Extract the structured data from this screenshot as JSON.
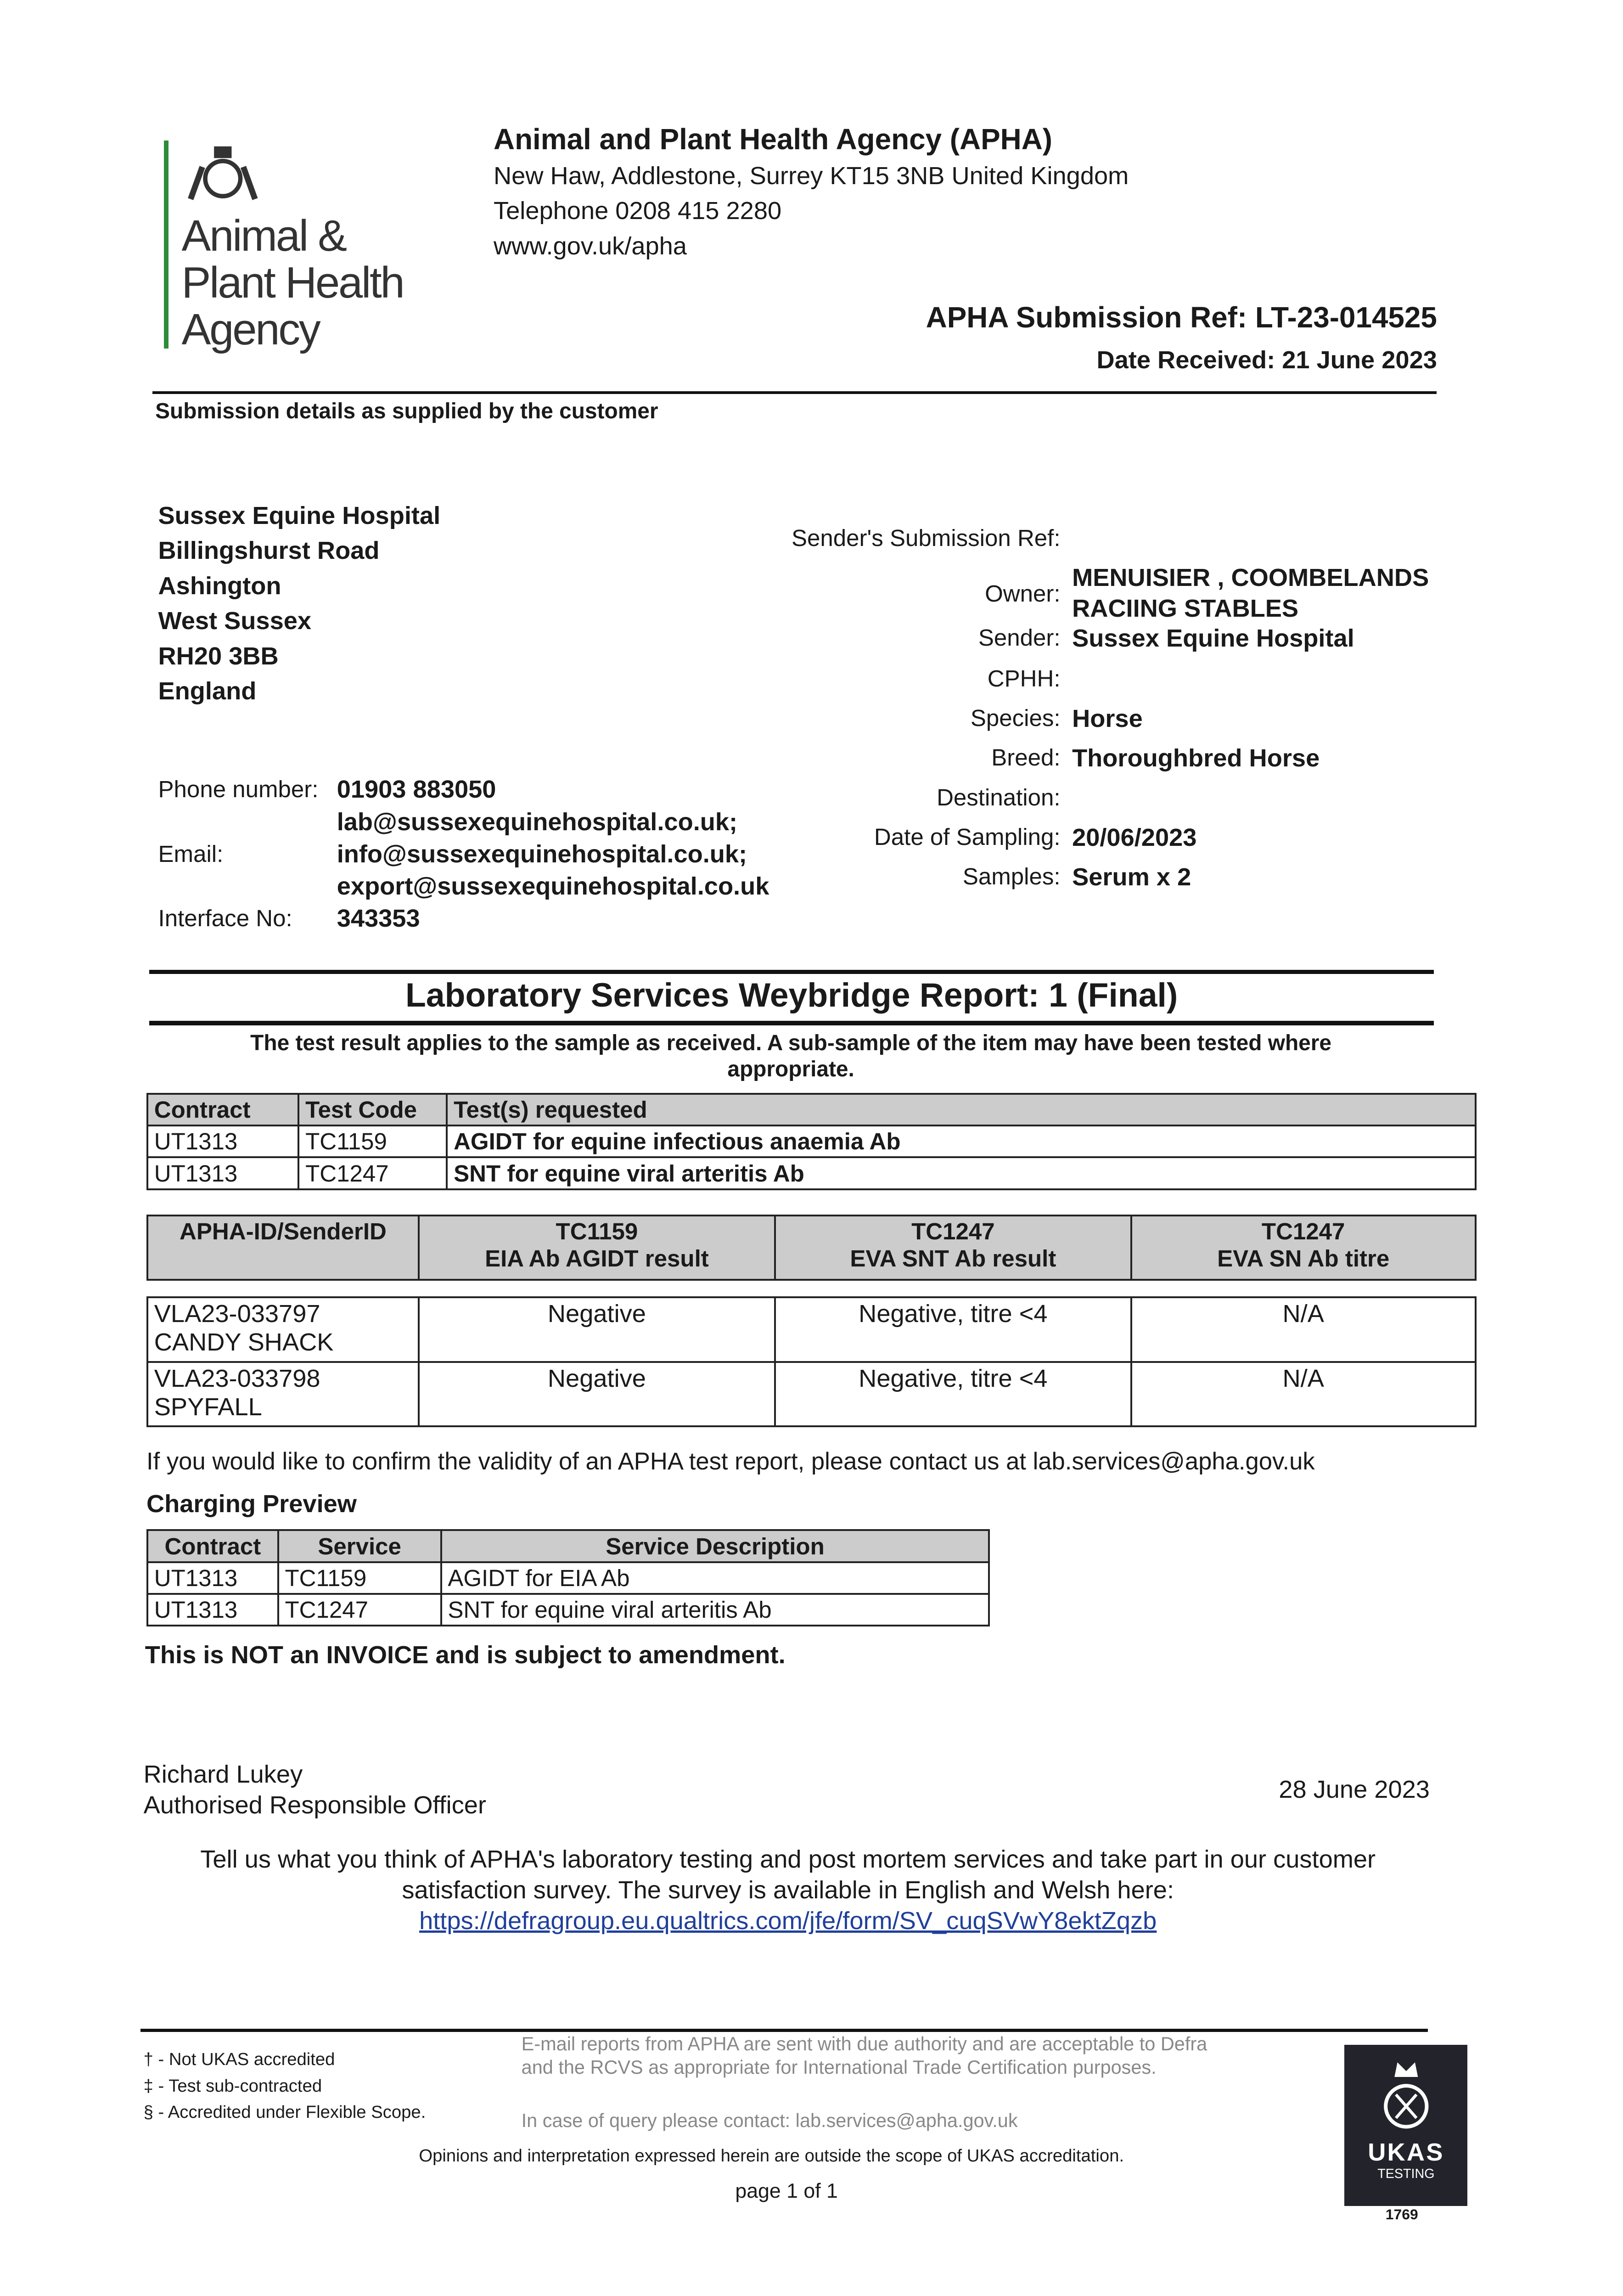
{
  "logo": {
    "text_lines": [
      "Animal &",
      "Plant Health",
      "Agency"
    ]
  },
  "header": {
    "org": "Animal and Plant Health Agency (APHA)",
    "address": "New Haw, Addlestone, Surrey KT15 3NB United Kingdom",
    "telephone": "Telephone 0208 415 2280",
    "web": "www.gov.uk/apha",
    "submission_ref": "APHA Submission Ref: LT-23-014525",
    "date_received": "Date Received: 21 June 2023",
    "section_label": "Submission details as supplied by the customer"
  },
  "customer": {
    "address": [
      "Sussex Equine Hospital",
      "Billingshurst Road",
      "Ashington",
      "West Sussex",
      "RH20 3BB",
      "England"
    ],
    "phone_label": "Phone number:",
    "phone": "01903 883050",
    "email_label": "Email:",
    "emails": [
      "lab@sussexequinehospital.co.uk;",
      "info@sussexequinehospital.co.uk;",
      "export@sussexequinehospital.co.uk"
    ],
    "interface_label": "Interface No:",
    "interface": "343353"
  },
  "details": [
    {
      "label": "Sender's Submission Ref:",
      "value": ""
    },
    {
      "label": "Owner:",
      "value": "MENUISIER , COOMBELANDS RACIING STABLES"
    },
    {
      "label": "Sender:",
      "value": "Sussex Equine Hospital"
    },
    {
      "label": "CPHH:",
      "value": ""
    },
    {
      "label": "Species:",
      "value": "Horse"
    },
    {
      "label": "Breed:",
      "value": "Thoroughbred Horse"
    },
    {
      "label": "Destination:",
      "value": ""
    },
    {
      "label": "Date of Sampling:",
      "value": "20/06/2023"
    },
    {
      "label": "Samples:",
      "value": "Serum x 2"
    }
  ],
  "report": {
    "title": "Laboratory Services Weybridge Report: 1 (Final)",
    "note": "The test result applies to the sample as received. A sub-sample of the item may have been tested where appropriate."
  },
  "tests_table": {
    "headers": [
      "Contract",
      "Test Code",
      "Test(s) requested"
    ],
    "rows": [
      [
        "UT1313",
        "TC1159",
        "AGIDT for equine infectious anaemia Ab"
      ],
      [
        "UT1313",
        "TC1247",
        "SNT for equine viral arteritis Ab"
      ]
    ]
  },
  "results_table": {
    "headers": [
      [
        "APHA-ID/SenderID",
        ""
      ],
      [
        "TC1159",
        "EIA Ab AGIDT result"
      ],
      [
        "TC1247",
        "EVA SNT Ab result"
      ],
      [
        "TC1247",
        "EVA SN Ab titre"
      ]
    ],
    "rows": [
      [
        [
          "VLA23-033797",
          "CANDY SHACK"
        ],
        "Negative",
        "Negative, titre <4",
        "N/A"
      ],
      [
        [
          "VLA23-033798",
          "SPYFALL"
        ],
        "Negative",
        "Negative, titre <4",
        "N/A"
      ]
    ]
  },
  "validity_note": "If you would like to confirm the validity of an APHA test report, please contact us at lab.services@apha.gov.uk",
  "charging": {
    "title": "Charging Preview",
    "headers": [
      "Contract",
      "Service",
      "Service Description"
    ],
    "rows": [
      [
        "UT1313",
        "TC1159",
        "AGIDT for EIA Ab"
      ],
      [
        "UT1313",
        "TC1247",
        "SNT for equine viral arteritis Ab"
      ]
    ],
    "disclaimer": "This is NOT an INVOICE and is subject to amendment."
  },
  "signature": {
    "name": "Richard Lukey",
    "role": "Authorised Responsible Officer",
    "date": "28 June 2023"
  },
  "survey": {
    "text": "Tell us what you think of APHA's laboratory testing and post mortem services and take part in our customer satisfaction survey. The survey is available in English and Welsh here:",
    "link": "https://defragroup.eu.qualtrics.com/jfe/form/SV_cuqSVwY8ektZqzb"
  },
  "footer": {
    "keys": [
      "† - Not UKAS accredited",
      "‡ - Test sub-contracted",
      "§ - Accredited under Flexible Scope."
    ],
    "email_note": "E-mail reports from APHA are sent with due authority and are acceptable to Defra and the RCVS as appropriate for International Trade Certification purposes.",
    "query": "In case of query please contact: lab.services@apha.gov.uk",
    "opinions": "Opinions and interpretation expressed herein are outside the scope of UKAS accreditation.",
    "page": "page 1 of 1",
    "ukas": {
      "name": "UKAS",
      "sub": "TESTING",
      "number": "1769"
    }
  },
  "colors": {
    "logo_bar": "#2e8b3a",
    "table_header": "#cccccc",
    "link": "#1f3f9a",
    "ukas_bg": "#23232b"
  }
}
